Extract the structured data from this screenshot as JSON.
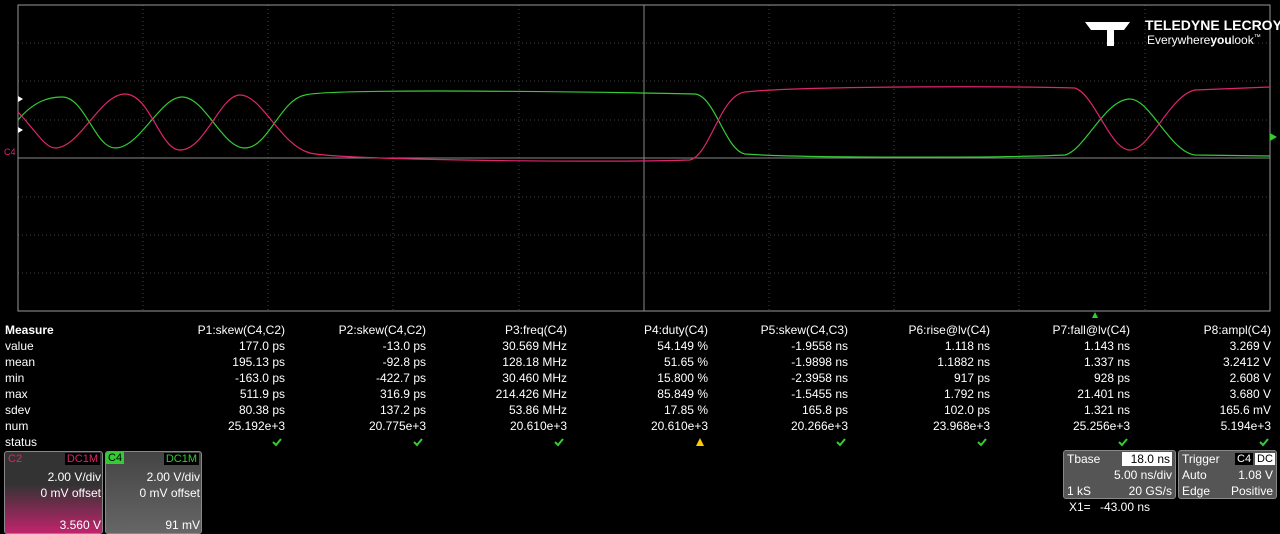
{
  "logo": {
    "brand": "TELEDYNE LECROY",
    "tagline_a": "Everywhere",
    "tagline_b": "you",
    "tagline_c": "look",
    "tm": "™"
  },
  "grid_marker": "C4",
  "measure": {
    "header": [
      "Measure",
      "P1:skew(C4,C2)",
      "P2:skew(C4,C2)",
      "P3:freq(C4)",
      "P4:duty(C4)",
      "P5:skew(C4,C3)",
      "P6:rise@lv(C4)",
      "P7:fall@lv(C4)",
      "P8:ampl(C4)"
    ],
    "rows": [
      [
        "value",
        "177.0 ps",
        "-13.0 ps",
        "30.569 MHz",
        "54.149 %",
        "-1.9558 ns",
        "1.118 ns",
        "1.143 ns",
        "3.269 V"
      ],
      [
        "mean",
        "195.13 ps",
        "-92.8 ps",
        "128.18 MHz",
        "51.65 %",
        "-1.9898 ns",
        "1.1882 ns",
        "1.337 ns",
        "3.2412 V"
      ],
      [
        "min",
        "-163.0 ps",
        "-422.7 ps",
        "30.460 MHz",
        "15.800 %",
        "-2.3958 ns",
        "917 ps",
        "928 ps",
        "2.608 V"
      ],
      [
        "max",
        "511.9 ps",
        "316.9 ps",
        "214.426 MHz",
        "85.849 %",
        "-1.5455 ns",
        "1.792 ns",
        "21.401 ns",
        "3.680 V"
      ],
      [
        "sdev",
        "80.38 ps",
        "137.2 ps",
        "53.86 MHz",
        "17.85 %",
        "165.8 ps",
        "102.0 ps",
        "1.321 ns",
        "165.6 mV"
      ],
      [
        "num",
        "25.192e+3",
        "20.775e+3",
        "20.610e+3",
        "20.610e+3",
        "20.266e+3",
        "23.968e+3",
        "25.256e+3",
        "5.194e+3"
      ],
      [
        "status"
      ]
    ]
  },
  "channels": [
    {
      "name": "C2",
      "coupling": "DC1M",
      "scale": "2.00 V/div",
      "offset": "0 mV offset",
      "level": "3.560 V"
    },
    {
      "name": "C4",
      "coupling": "DC1M",
      "scale": "2.00 V/div",
      "offset": "0 mV offset",
      "level": "91 mV"
    }
  ],
  "timebase": {
    "label": "Tbase",
    "delay": "18.0 ns",
    "scale": "5.00 ns/div",
    "points": "1 kS",
    "rate": "20 GS/s"
  },
  "trigger": {
    "label": "Trigger",
    "source": "C4",
    "coupling": "DC",
    "mode": "Auto",
    "level": "1.08 V",
    "type": "Edge",
    "slope": "Positive"
  },
  "cursor": {
    "label": "X1=",
    "value": "-43.00 ns"
  }
}
